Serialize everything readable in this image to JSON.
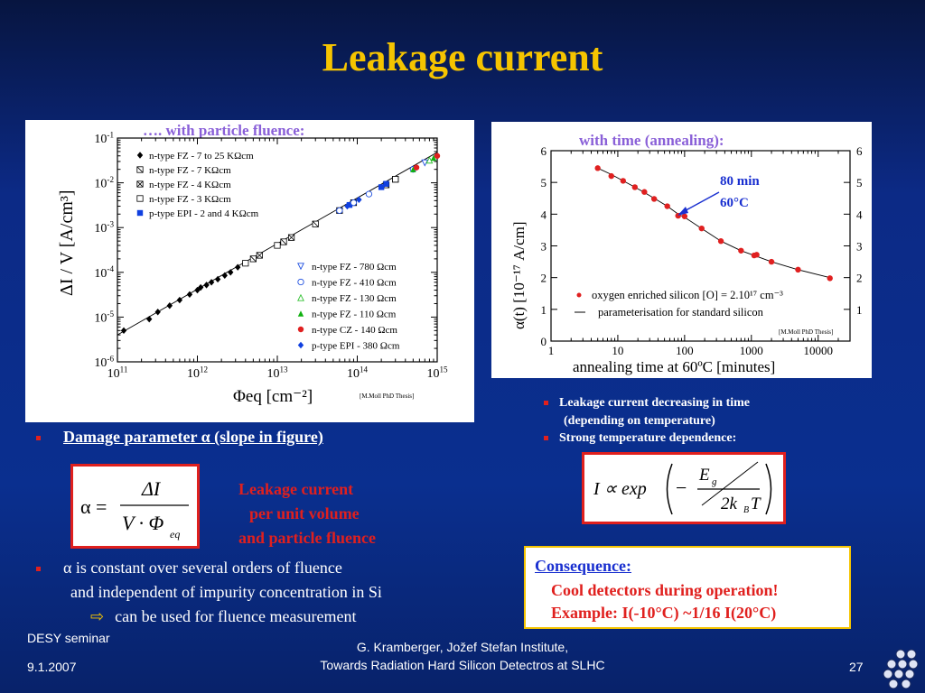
{
  "slide": {
    "title": "Leakage current",
    "slide_number": "27",
    "footer_left_1": "DESY seminar",
    "footer_left_2": "9.1.2007",
    "footer_center_1": "G. Kramberger, Jožef Stefan Institute,",
    "footer_center_2": "Towards Radiation Hard Silicon Detectros at SLHC"
  },
  "left_chart": {
    "caption": "…. with particle fluence:",
    "source_note": "[M.Moll PhD Thesis]",
    "xlabel": "Φeq [cm⁻²]",
    "ylabel": "ΔI / V   [A/cm³]",
    "legend_top": [
      "n-type FZ - 7 to 25 KΩcm",
      "n-type FZ - 7 KΩcm",
      "n-type FZ - 4 KΩcm",
      "n-type FZ - 3 KΩcm",
      "p-type EPI - 2 and 4 KΩcm"
    ],
    "legend_bottom": [
      "n-type FZ - 780 Ωcm",
      "n-type FZ - 410 Ωcm",
      "n-type FZ - 130 Ωcm",
      "n-type FZ - 110 Ωcm",
      "n-type CZ - 140 Ωcm",
      "p-type EPI - 380 Ωcm"
    ]
  },
  "right_chart": {
    "caption": "with time (annealing):",
    "annotation_1": "80 min",
    "annotation_2": "60°C",
    "xlabel": "annealing time at 60ºC [minutes]",
    "ylabel": "α(t) [10⁻¹⁷ A/cm]",
    "legend_1": "oxygen enriched silicon [O] = 2.10¹⁷ cm⁻³",
    "legend_2": "parameterisation for standard silicon",
    "source_note": "[M.Moll PhD Thesis]"
  },
  "chart_data": [
    {
      "type": "scatter",
      "title": "…. with particle fluence:",
      "xlabel": "Φeq [cm⁻²]",
      "ylabel": "ΔI / V [A/cm³]",
      "x_scale": "log",
      "y_scale": "log",
      "xlim": [
        100000000000.0,
        1000000000000000.0
      ],
      "ylim": [
        1e-06,
        0.1
      ],
      "x_ticks": [
        "10^11",
        "10^12",
        "10^13",
        "10^14",
        "10^15"
      ],
      "y_ticks": [
        "10^-1",
        "10^-2",
        "10^-3",
        "10^-4",
        "10^-5",
        "10^-6"
      ],
      "fit_line": {
        "x": [
          100000000000.0,
          1200000000000000.0
        ],
        "y": [
          4e-06,
          0.048
        ]
      },
      "series": [
        {
          "name": "n-type FZ - 7 to 25 KΩcm",
          "marker": "diamond",
          "color": "#000000",
          "x": [
            120000000000.0,
            250000000000.0,
            320000000000.0,
            450000000000.0,
            600000000000.0,
            800000000000.0,
            1000000000000.0,
            1100000000000.0,
            1300000000000.0,
            1500000000000.0,
            1800000000000.0,
            2200000000000.0,
            2600000000000.0,
            3200000000000.0
          ],
          "y": [
            5e-06,
            9e-06,
            1.3e-05,
            1.8e-05,
            2.4e-05,
            3.2e-05,
            4e-05,
            4.6e-05,
            5.2e-05,
            6e-05,
            7e-05,
            8.5e-05,
            0.0001,
            0.00013
          ]
        },
        {
          "name": "n-type FZ - 7 KΩcm",
          "marker": "square-x",
          "color": "#000000",
          "x": [
            5000000000000.0,
            12000000000000.0,
            30000000000000.0,
            90000000000000.0,
            300000000000000.0
          ],
          "y": [
            0.0002,
            0.00048,
            0.0012,
            0.0036,
            0.012
          ]
        },
        {
          "name": "n-type FZ - 4 KΩcm",
          "marker": "square-x2",
          "color": "#000000",
          "x": [
            6000000000000.0,
            15000000000000.0,
            230000000000000.0
          ],
          "y": [
            0.00024,
            0.0006,
            0.009
          ]
        },
        {
          "name": "n-type FZ - 3 KΩcm",
          "marker": "square",
          "color": "#000000",
          "x": [
            4000000000000.0,
            10000000000000.0,
            60000000000000.0,
            300000000000000.0
          ],
          "y": [
            0.00016,
            0.0004,
            0.0024,
            0.012
          ]
        },
        {
          "name": "p-type EPI - 2 and 4 KΩcm",
          "marker": "filled-square",
          "color": "#1040e0",
          "x": [
            80000000000000.0,
            200000000000000.0,
            230000000000000.0
          ],
          "y": [
            0.0032,
            0.008,
            0.0095
          ]
        },
        {
          "name": "n-type FZ - 780 Ωcm",
          "marker": "triangle-down",
          "color": "#2050e0",
          "x": [
            700000000000000.0
          ],
          "y": [
            0.028
          ]
        },
        {
          "name": "n-type FZ - 410 Ωcm",
          "marker": "circle",
          "color": "#2050e0",
          "x": [
            60000000000000.0,
            90000000000000.0,
            140000000000000.0,
            500000000000000.0
          ],
          "y": [
            0.0024,
            0.0036,
            0.0056,
            0.02
          ]
        },
        {
          "name": "n-type FZ - 130 Ωcm",
          "marker": "triangle",
          "color": "#30c030",
          "x": [
            800000000000000.0
          ],
          "y": [
            0.032
          ]
        },
        {
          "name": "n-type FZ - 110 Ωcm",
          "marker": "filled-triangle",
          "color": "#10b010",
          "x": [
            500000000000000.0,
            900000000000000.0
          ],
          "y": [
            0.02,
            0.036
          ]
        },
        {
          "name": "n-type CZ - 140 Ωcm",
          "marker": "filled-circle",
          "color": "#e02020",
          "x": [
            550000000000000.0,
            1000000000000000.0
          ],
          "y": [
            0.022,
            0.04
          ]
        },
        {
          "name": "p-type EPI - 380 Ωcm",
          "marker": "filled-diamond",
          "color": "#1040e0",
          "x": [
            75000000000000.0,
            105000000000000.0
          ],
          "y": [
            0.003,
            0.0042
          ]
        }
      ]
    },
    {
      "type": "line",
      "title": "with time (annealing):",
      "xlabel": "annealing time at 60ºC [minutes]",
      "ylabel": "α(t) [10⁻¹⁷ A/cm]",
      "x_scale": "log",
      "xlim": [
        1,
        30000
      ],
      "ylim": [
        0,
        6
      ],
      "x_ticks": [
        "1",
        "10",
        "100",
        "1000",
        "10000"
      ],
      "y_ticks": [
        "0",
        "1",
        "2",
        "3",
        "4",
        "5",
        "6"
      ],
      "series": [
        {
          "name": "oxygen enriched silicon [O] = 2.10¹⁷ cm⁻³",
          "marker": "filled-circle",
          "color": "#e02020",
          "x": [
            5,
            8,
            12,
            18,
            25,
            35,
            55,
            80,
            100,
            180,
            350,
            700,
            1100,
            1200,
            2000,
            5000,
            15000
          ],
          "y": [
            5.45,
            5.2,
            5.05,
            4.85,
            4.7,
            4.48,
            4.25,
            3.95,
            3.93,
            3.55,
            3.15,
            2.85,
            2.7,
            2.72,
            2.5,
            2.25,
            1.98
          ]
        },
        {
          "name": "parameterisation for standard silicon",
          "marker": "none",
          "color": "#000000",
          "x": [
            5,
            8,
            12,
            18,
            25,
            35,
            55,
            80,
            100,
            180,
            350,
            700,
            1100,
            2000,
            5000,
            15000
          ],
          "y": [
            5.45,
            5.25,
            5.05,
            4.85,
            4.68,
            4.5,
            4.25,
            4.0,
            3.9,
            3.55,
            3.15,
            2.85,
            2.7,
            2.5,
            2.25,
            2.0
          ]
        }
      ]
    }
  ],
  "bullets": {
    "b1": "Damage parameter α (slope in figure)",
    "b2_line1": "α is constant over several orders of fluence",
    "b2_line2": "and independent of impurity concentration in Si",
    "b2_line3": "can be used for fluence measurement",
    "arrow_glyph": "⇨",
    "r1_line1": "Leakage current decreasing in time",
    "r1_line2": "(depending on temperature)",
    "r2": "Strong temperature dependence:"
  },
  "formula_alpha": {
    "lhs": "α =",
    "numerator": "ΔI",
    "denominator": "V · Φ",
    "subscript": "eq"
  },
  "leakage_note": {
    "line1": "Leakage current",
    "line2": "per unit volume",
    "line3": "and particle fluence"
  },
  "formula_temp": {
    "text": "I ∝ exp",
    "minus": "−",
    "num": "E",
    "num_sub": "g",
    "den": "2k",
    "den_sub": "B",
    "den_end": "T"
  },
  "consequence": {
    "heading": "Consequence:",
    "line1": "Cool detectors during operation!",
    "line2": "Example:  I(-10°C) ~1/16 I(20°C)"
  },
  "colors": {
    "title": "#f5c400",
    "accent_red": "#e0201e",
    "background": "#0a2a86"
  },
  "logo": {
    "icon": "desy-dots-logo"
  }
}
